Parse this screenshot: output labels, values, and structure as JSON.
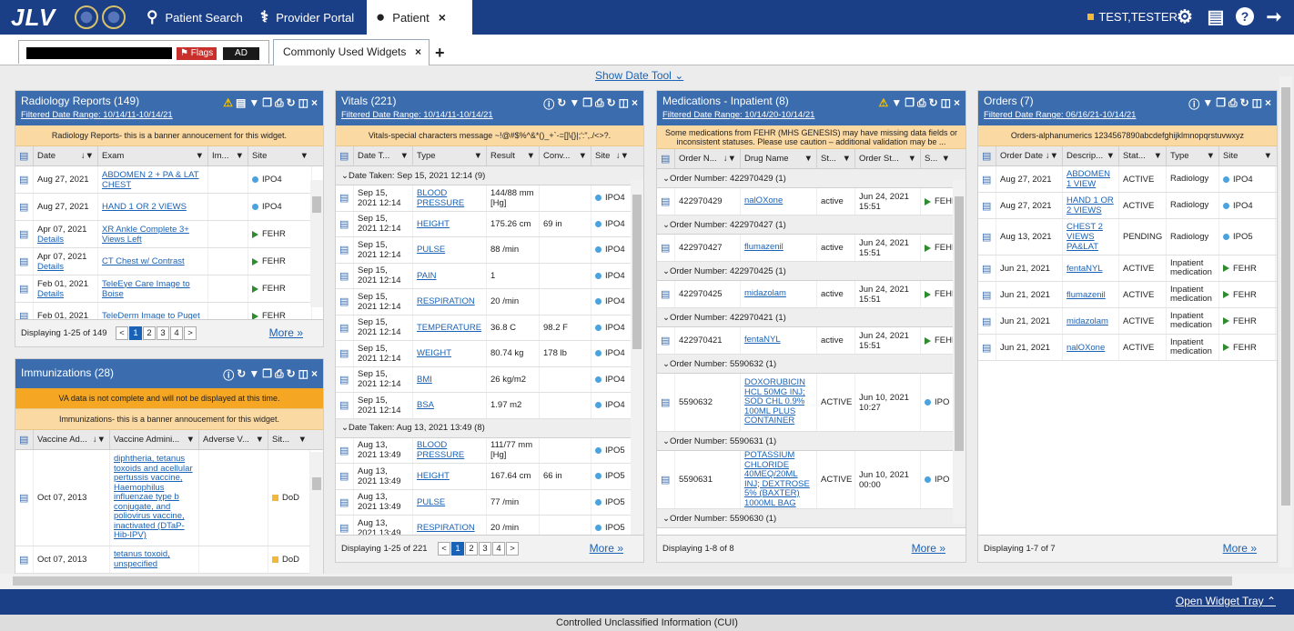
{
  "app": {
    "logo": "JLV",
    "nav": {
      "patient_search": "Patient Search",
      "provider_portal": "Provider Portal",
      "patient_tab": "Patient"
    },
    "user": "TEST,TESTER"
  },
  "patient_bar": {
    "flags": "Flags",
    "ad": "AD",
    "tab": "Commonly Used Widgets"
  },
  "date_tool": "Show Date Tool",
  "radiology": {
    "title": "Radiology Reports (149)",
    "range": "Filtered Date Range: 10/14/11-10/14/21",
    "banner": "Radiology Reports- this is a banner annoucement for this widget.",
    "cols": [
      "Date",
      "Exam",
      "Im...",
      "Site"
    ],
    "rows": [
      {
        "date": "Aug 27, 2021",
        "details": "",
        "exam": "ABDOMEN 2 + PA & LAT CHEST",
        "site": "IPO4",
        "mark": "dot"
      },
      {
        "date": "Aug 27, 2021",
        "details": "",
        "exam": "HAND 1 OR 2 VIEWS",
        "site": "IPO4",
        "mark": "dot"
      },
      {
        "date": "Apr 07, 2021",
        "details": "Details",
        "exam": "XR Ankle Complete 3+ Views Left",
        "site": "FEHR",
        "mark": "tri"
      },
      {
        "date": "Apr 07, 2021",
        "details": "Details",
        "exam": "CT Chest w/ Contrast",
        "site": "FEHR",
        "mark": "tri"
      },
      {
        "date": "Feb 01, 2021",
        "details": "Details",
        "exam": "TeleEye Care Image to Boise",
        "site": "FEHR",
        "mark": "tri"
      },
      {
        "date": "Feb 01, 2021",
        "details": "",
        "exam": "TeleDerm Image to Puget",
        "site": "FEHR",
        "mark": "tri"
      }
    ],
    "footer": "Displaying 1-25 of 149",
    "pages": [
      "<",
      "1",
      "2",
      "3",
      "4",
      ">"
    ],
    "more": "More"
  },
  "immunizations": {
    "title": "Immunizations (28)",
    "banner1": "VA data is not complete and will not be displayed at this time.",
    "banner2": "Immunizations- this is a banner annoucement for this widget.",
    "cols": [
      "Vaccine Ad...",
      "Vaccine Admini...",
      "Adverse V...",
      "Sit..."
    ],
    "rows": [
      {
        "date": "Oct 07, 2013",
        "vaccine": "diphtheria, tetanus toxoids and acellular pertussis vaccine, Haemophilus influenzae type b conjugate, and poliovirus vaccine, inactivated (DTaP-Hib-IPV)",
        "site": "DoD"
      },
      {
        "date": "Oct 07, 2013",
        "vaccine": "tetanus toxoid, unspecified",
        "site": "DoD"
      }
    ]
  },
  "vitals": {
    "title": "Vitals (221)",
    "range": "Filtered Date Range: 10/14/11-10/14/21",
    "banner": "Vitals-special characters message ~!@#$%^&*()_+`-=[]\\{}|;':\",./<>?.",
    "cols": [
      "Date T...",
      "Type",
      "Result",
      "Conv...",
      "Site"
    ],
    "group1": "Date Taken: Sep 15, 2021 12:14 (9)",
    "rows1": [
      {
        "date": "Sep 15, 2021 12:14",
        "type": "BLOOD PRESSURE",
        "result": "144/88 mm [Hg]",
        "conv": "",
        "site": "IPO4"
      },
      {
        "date": "Sep 15, 2021 12:14",
        "type": "HEIGHT",
        "result": "175.26 cm",
        "conv": "69 in",
        "site": "IPO4"
      },
      {
        "date": "Sep 15, 2021 12:14",
        "type": "PULSE",
        "result": "88 /min",
        "conv": "",
        "site": "IPO4"
      },
      {
        "date": "Sep 15, 2021 12:14",
        "type": "PAIN",
        "result": "1",
        "conv": "",
        "site": "IPO4"
      },
      {
        "date": "Sep 15, 2021 12:14",
        "type": "RESPIRATION",
        "result": "20 /min",
        "conv": "",
        "site": "IPO4"
      },
      {
        "date": "Sep 15, 2021 12:14",
        "type": "TEMPERATURE",
        "result": "36.8 C",
        "conv": "98.2 F",
        "site": "IPO4"
      },
      {
        "date": "Sep 15, 2021 12:14",
        "type": "WEIGHT",
        "result": "80.74 kg",
        "conv": "178 lb",
        "site": "IPO4"
      },
      {
        "date": "Sep 15, 2021 12:14",
        "type": "BMI",
        "result": "26 kg/m2",
        "conv": "",
        "site": "IPO4"
      },
      {
        "date": "Sep 15, 2021 12:14",
        "type": "BSA",
        "result": "1.97 m2",
        "conv": "",
        "site": "IPO4"
      }
    ],
    "group2": "Date Taken: Aug 13, 2021 13:49 (8)",
    "rows2": [
      {
        "date": "Aug 13, 2021 13:49",
        "type": "BLOOD PRESSURE",
        "result": "111/77 mm [Hg]",
        "conv": "",
        "site": "IPO5"
      },
      {
        "date": "Aug 13, 2021 13:49",
        "type": "HEIGHT",
        "result": "167.64 cm",
        "conv": "66 in",
        "site": "IPO5"
      },
      {
        "date": "Aug 13, 2021 13:49",
        "type": "PULSE",
        "result": "77 /min",
        "conv": "",
        "site": "IPO5"
      },
      {
        "date": "Aug 13, 2021 13:49",
        "type": "RESPIRATION",
        "result": "20 /min",
        "conv": "",
        "site": "IPO5"
      }
    ],
    "footer": "Displaying 1-25 of 221",
    "pages": [
      "<",
      "1",
      "2",
      "3",
      "4",
      ">"
    ],
    "more": "More"
  },
  "medications": {
    "title": "Medications - Inpatient (8)",
    "range": "Filtered Date Range: 10/14/20-10/14/21",
    "banner": "Some medications from FEHR (MHS GENESIS) may have missing data fields or inconsistent statuses. Please use caution – additional validation may be ...",
    "cols": [
      "Order N...",
      "Drug Name",
      "St...",
      "Order St...",
      "S..."
    ],
    "groups": [
      {
        "label": "Order Number: 422970429 (1)",
        "order": "422970429",
        "drug": "nalOXone",
        "status": "active",
        "date": "Jun 24, 2021 15:51",
        "site": "FEHR"
      },
      {
        "label": "Order Number: 422970427 (1)",
        "order": "422970427",
        "drug": "flumazenil",
        "status": "active",
        "date": "Jun 24, 2021 15:51",
        "site": "FEHR"
      },
      {
        "label": "Order Number: 422970425 (1)",
        "order": "422970425",
        "drug": "midazolam",
        "status": "active",
        "date": "Jun 24, 2021 15:51",
        "site": "FEHR"
      },
      {
        "label": "Order Number: 422970421 (1)",
        "order": "422970421",
        "drug": "fentaNYL",
        "status": "active",
        "date": "Jun 24, 2021 15:51",
        "site": "FEHR"
      },
      {
        "label": "Order Number: 5590632 (1)",
        "order": "5590632",
        "drug": "DOXORUBICIN HCL 50MG INJ; SOD CHL 0.9% 100ML PLUS CONTAINER",
        "status": "ACTIVE",
        "date": "Jun 10, 2021 10:27",
        "site": "IPO"
      },
      {
        "label": "Order Number: 5590631 (1)",
        "order": "5590631",
        "drug": "POTASSIUM CHLORIDE 40MEQ/20ML INJ; DEXTROSE 5% (BAXTER) 1000ML BAG",
        "status": "ACTIVE",
        "date": "Jun 10, 2021 00:00",
        "site": "IPO"
      }
    ],
    "last_group": "Order Number: 5590630 (1)",
    "footer": "Displaying 1-8 of 8",
    "more": "More"
  },
  "orders": {
    "title": "Orders (7)",
    "range": "Filtered Date Range: 06/16/21-10/14/21",
    "banner": "Orders-alphanumerics 1234567890abcdefghijklmnopqrstuvwxyz",
    "cols": [
      "Order Date",
      "Descrip...",
      "Stat...",
      "Type",
      "Site"
    ],
    "rows": [
      {
        "date": "Aug 27, 2021",
        "desc": "ABDOMEN 1 VIEW",
        "status": "ACTIVE",
        "type": "Radiology",
        "site": "IPO4",
        "mark": "dot"
      },
      {
        "date": "Aug 27, 2021",
        "desc": "HAND 1 OR 2 VIEWS",
        "status": "ACTIVE",
        "type": "Radiology",
        "site": "IPO4",
        "mark": "dot"
      },
      {
        "date": "Aug 13, 2021",
        "desc": "CHEST 2 VIEWS PA&LAT",
        "status": "PENDING",
        "type": "Radiology",
        "site": "IPO5",
        "mark": "dot"
      },
      {
        "date": "Jun 21, 2021",
        "desc": "fentaNYL",
        "status": "ACTIVE",
        "type": "Inpatient medication",
        "site": "FEHR",
        "mark": "tri"
      },
      {
        "date": "Jun 21, 2021",
        "desc": "flumazenil",
        "status": "ACTIVE",
        "type": "Inpatient medication",
        "site": "FEHR",
        "mark": "tri"
      },
      {
        "date": "Jun 21, 2021",
        "desc": "midazolam",
        "status": "ACTIVE",
        "type": "Inpatient medication",
        "site": "FEHR",
        "mark": "tri"
      },
      {
        "date": "Jun 21, 2021",
        "desc": "nalOXone",
        "status": "ACTIVE",
        "type": "Inpatient medication",
        "site": "FEHR",
        "mark": "tri"
      }
    ],
    "footer": "Displaying 1-7 of 7",
    "more": "More"
  },
  "tray": "Open Widget Tray",
  "cui": "Controlled Unclassified Information (CUI)"
}
